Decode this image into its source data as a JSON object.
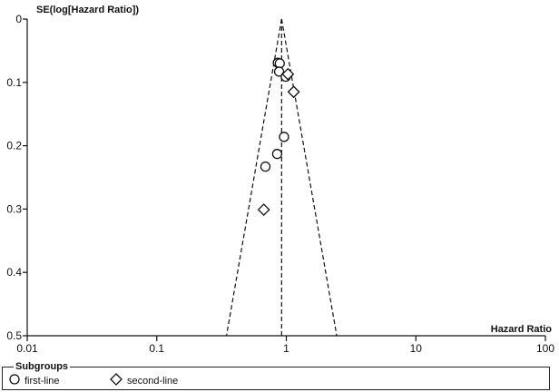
{
  "chart_data": {
    "type": "scatter",
    "subtype": "funnel-plot",
    "x_scale": "log",
    "xlabel": "Hazard Ratio",
    "ylabel": "SE(log[Hazard Ratio])",
    "xlim": [
      0.01,
      100
    ],
    "ylim": [
      0.5,
      0
    ],
    "y_reversed": true,
    "x_ticks": [
      0.01,
      0.1,
      1,
      10,
      100
    ],
    "x_tick_labels": [
      "0.01",
      "0.1",
      "1",
      "10",
      "100"
    ],
    "y_ticks": [
      0,
      0.1,
      0.2,
      0.3,
      0.4,
      0.5
    ],
    "y_tick_labels": [
      "0",
      "0.1",
      "0.2",
      "0.3",
      "0.4",
      "0.5"
    ],
    "pooled_estimate": 0.92,
    "funnel_limits": "95% pseudo confidence limits (dashed)",
    "grid": false,
    "legend_position": "bottom",
    "series": [
      {
        "name": "first-line",
        "marker": "circle",
        "points": [
          {
            "x": 0.86,
            "y": 0.069
          },
          {
            "x": 0.89,
            "y": 0.07
          },
          {
            "x": 0.88,
            "y": 0.083
          },
          {
            "x": 0.99,
            "y": 0.091
          },
          {
            "x": 0.96,
            "y": 0.186
          },
          {
            "x": 0.85,
            "y": 0.213
          },
          {
            "x": 0.69,
            "y": 0.233
          }
        ]
      },
      {
        "name": "second-line",
        "marker": "diamond",
        "points": [
          {
            "x": 1.03,
            "y": 0.087
          },
          {
            "x": 1.14,
            "y": 0.115
          },
          {
            "x": 0.67,
            "y": 0.301
          }
        ]
      }
    ]
  },
  "legend": {
    "title": "Subgroups",
    "items": [
      {
        "label": "first-line",
        "marker": "circle"
      },
      {
        "label": "second-line",
        "marker": "diamond"
      }
    ]
  }
}
